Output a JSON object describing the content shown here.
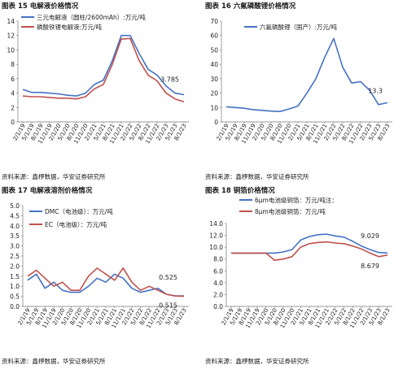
{
  "panels": [
    {
      "title": "图表 15 电解液价格情况",
      "source": "资料来源：鑫椤数据，华安证券研究所"
    },
    {
      "title": "图表 16 六氟磷酸锂价格情况",
      "source": "资料来源：鑫椤数据，华安证券研究所"
    },
    {
      "title": "图表 17 电解液溶剂价格情况",
      "source": "资料来源：鑫椤数据，华安证券研究所"
    },
    {
      "title": "图表 18 铜箔价格情况",
      "source": "资料来源：鑫椤数据，华安证券研究所"
    }
  ],
  "chart_data": [
    {
      "type": "line",
      "title": "",
      "ylim": [
        0,
        14
      ],
      "yticks": [
        "0",
        "2",
        "4",
        "6",
        "8",
        "10",
        "12",
        "14"
      ],
      "x": [
        "2/1/19",
        "5/1/19",
        "8/1/19",
        "11/1/19",
        "2/1/20",
        "5/1/20",
        "8/1/20",
        "11/1/20",
        "2/1/21",
        "5/1/21",
        "8/1/21",
        "11/1/21",
        "2/1/22",
        "5/1/22",
        "8/1/22",
        "11/1/22",
        "2/1/23",
        "5/1/23",
        "8/1/23"
      ],
      "series": [
        {
          "name": "三元电解液（圆柱/2600mAh）:万元/吨",
          "color": "#4472C4",
          "values": [
            4.5,
            4.1,
            4.1,
            4.0,
            3.9,
            3.7,
            3.6,
            4.0,
            5.2,
            5.8,
            8.5,
            12.0,
            12.0,
            9.5,
            7.3,
            6.5,
            5.0,
            4.0,
            3.785
          ]
        },
        {
          "name": "磷酸铁锂电解液:万元/吨",
          "color": "#C0504D",
          "values": [
            3.6,
            3.5,
            3.5,
            3.4,
            3.3,
            3.3,
            3.2,
            3.5,
            4.6,
            5.2,
            8.0,
            11.5,
            11.6,
            8.5,
            6.5,
            5.7,
            4.0,
            3.2,
            2.8
          ]
        }
      ],
      "annotations": [
        {
          "text": "3.785"
        }
      ]
    },
    {
      "type": "line",
      "title": "",
      "ylim": [
        0,
        70
      ],
      "yticks": [
        "0",
        "10",
        "20",
        "30",
        "40",
        "50",
        "60",
        "70"
      ],
      "x": [
        "2/1/19",
        "5/1/19",
        "8/1/19",
        "11/1/19",
        "2/1/20",
        "5/1/20",
        "8/1/20",
        "11/1/20",
        "2/1/21",
        "5/1/21",
        "8/1/21",
        "11/1/21",
        "2/1/22",
        "5/1/22",
        "8/1/22",
        "11/1/22",
        "2/1/23",
        "5/1/23",
        "8/1/23"
      ],
      "series": [
        {
          "name": "六氟磷酸锂（国产）:万元/吨",
          "color": "#4472C4",
          "values": [
            10.5,
            10.0,
            9.5,
            8.5,
            8.0,
            7.5,
            7.2,
            9.0,
            11.0,
            20.0,
            30.0,
            45.0,
            58.0,
            38.0,
            27.0,
            28.0,
            22.0,
            12.0,
            13.3
          ]
        }
      ],
      "annotations": [
        {
          "text": "13.3"
        }
      ]
    },
    {
      "type": "line",
      "title": "",
      "ylim": [
        0,
        5
      ],
      "yticks": [
        "0.0",
        "0.5",
        "1.0",
        "1.5",
        "2.0",
        "2.5",
        "3.0",
        "3.5",
        "4.0",
        "4.5",
        "5.0"
      ],
      "x": [
        "2/1/19",
        "5/1/19",
        "8/1/19",
        "11/1/19",
        "2/1/20",
        "5/1/20",
        "8/1/20",
        "11/1/20",
        "2/1/21",
        "5/1/21",
        "8/1/21",
        "11/1/21",
        "2/1/22",
        "5/1/22",
        "8/1/22",
        "11/1/22",
        "2/1/23",
        "5/1/23",
        "8/1/23"
      ],
      "series": [
        {
          "name": "DMC（电池级）：万元/吨",
          "color": "#4472C4",
          "values": [
            1.3,
            1.6,
            0.9,
            1.2,
            0.8,
            0.7,
            0.7,
            1.0,
            1.4,
            1.2,
            1.6,
            1.4,
            0.9,
            0.7,
            0.8,
            0.9,
            0.6,
            0.525,
            0.52
          ]
        },
        {
          "name": "EC（电池级）：万元/吨",
          "color": "#C0504D",
          "values": [
            1.5,
            1.8,
            1.4,
            1.0,
            1.2,
            0.8,
            0.8,
            1.5,
            1.9,
            1.6,
            1.3,
            1.9,
            1.2,
            0.8,
            1.0,
            0.8,
            0.6,
            0.515,
            0.5
          ]
        }
      ],
      "annotations": [
        {
          "text": "0.525"
        },
        {
          "text": "0.515"
        }
      ]
    },
    {
      "type": "line",
      "title": "",
      "ylim": [
        0,
        14
      ],
      "yticks": [
        "0.0",
        "2.0",
        "4.0",
        "6.0",
        "8.0",
        "10.0",
        "12.0",
        "14.0"
      ],
      "x": [
        "2/1/19",
        "5/1/19",
        "8/1/19",
        "11/1/19",
        "2/1/20",
        "5/1/20",
        "8/1/20",
        "11/1/20",
        "2/1/21",
        "5/1/21",
        "8/1/21",
        "11/1/21",
        "2/1/22",
        "5/1/22",
        "8/1/22",
        "11/1/22",
        "2/1/23",
        "5/1/23",
        "8/1/23"
      ],
      "series": [
        {
          "name": "6μm电池级铜箔：万元/吨注：",
          "color": "#4472C4",
          "values": [
            9.0,
            9.0,
            9.0,
            9.0,
            9.0,
            9.0,
            9.2,
            9.6,
            11.2,
            11.8,
            12.1,
            12.2,
            11.9,
            11.7,
            11.0,
            10.2,
            9.6,
            9.1,
            9.029
          ]
        },
        {
          "name": "8μm电池级铜箔：万元/吨",
          "color": "#C0504D",
          "values": [
            9.0,
            9.0,
            9.0,
            9.0,
            9.0,
            7.8,
            8.0,
            8.4,
            10.0,
            10.6,
            10.8,
            10.9,
            10.7,
            10.6,
            10.2,
            9.7,
            9.0,
            8.4,
            8.679
          ]
        }
      ],
      "annotations": [
        {
          "text": "9.029"
        },
        {
          "text": "8.679"
        }
      ]
    }
  ]
}
